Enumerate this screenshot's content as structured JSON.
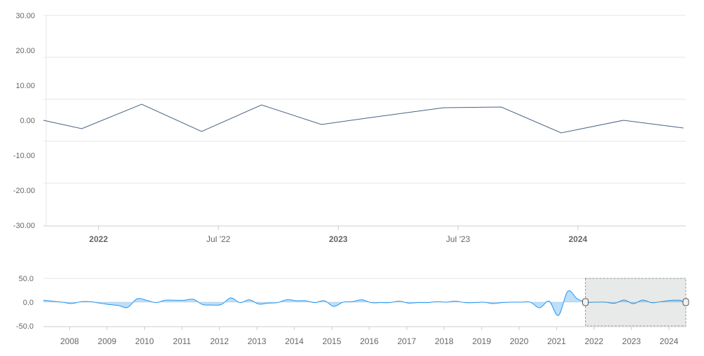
{
  "chart_data": {
    "type": "line",
    "main": {
      "y_ticks": [
        "30.00",
        "20.00",
        "10.00",
        "0.00",
        "-10.00",
        "-20.00",
        "-30.00"
      ],
      "ylim": [
        -30,
        30
      ],
      "x_ticks": [
        {
          "label": "2022",
          "date": 2022.0,
          "bold": true
        },
        {
          "label": "Jul '22",
          "date": 2022.5,
          "bold": false
        },
        {
          "label": "2023",
          "date": 2023.0,
          "bold": true
        },
        {
          "label": "Jul '23",
          "date": 2023.5,
          "bold": false
        },
        {
          "label": "2024",
          "date": 2024.0,
          "bold": true
        }
      ],
      "xlim": [
        2021.77,
        2024.45
      ],
      "series": [
        {
          "color": "#4a6283",
          "x": [
            "Oct 2021",
            "Dec 2021",
            "Mar 2022",
            "Jun 2022",
            "Sep 2022",
            "Dec 2022",
            "Mar 2023",
            "Jun 2023",
            "Sep 2023",
            "Dec 2023",
            "Mar 2024",
            "Jun 2024"
          ],
          "t": [
            2021.77,
            2021.93,
            2022.18,
            2022.43,
            2022.68,
            2022.93,
            2023.18,
            2023.44,
            2023.68,
            2023.93,
            2024.19,
            2024.44
          ],
          "values": [
            0,
            -2.4,
            4.6,
            -3.2,
            4.4,
            -1.2,
            1.2,
            3.6,
            3.8,
            -3.6,
            0,
            -2.2
          ]
        }
      ]
    },
    "navigator": {
      "y_ticks": [
        "50.0",
        "0.0",
        "-50.0"
      ],
      "ylim": [
        -50,
        50
      ],
      "x_ticks": [
        "2008",
        "2009",
        "2010",
        "2011",
        "2012",
        "2013",
        "2014",
        "2015",
        "2016",
        "2017",
        "2018",
        "2019",
        "2020",
        "2021",
        "2022",
        "2023",
        "2024"
      ],
      "xlim": [
        2007.3,
        2024.45
      ],
      "color": "#2196f3",
      "start": 2007.3,
      "step": 0.25,
      "values": [
        4,
        2,
        0,
        -3,
        1,
        1,
        -2,
        -5,
        -7,
        -11,
        7,
        4,
        -1,
        4,
        4,
        4,
        6,
        -5,
        -6,
        -5,
        9,
        -1,
        5,
        -4,
        -2,
        -1,
        5,
        3,
        3,
        -1,
        3,
        -9,
        0,
        1,
        5,
        -1,
        -1,
        -1,
        2,
        -2,
        -1,
        -1,
        1,
        0,
        2,
        -1,
        -1,
        0,
        -3,
        -1,
        0,
        0,
        0,
        -12,
        2,
        -28,
        23,
        7,
        0,
        0,
        0,
        -2.4,
        4.6,
        -3.2,
        4.4,
        -1.2,
        1.2,
        3.6,
        3.8,
        -3.6,
        0,
        -2.2
      ],
      "selection": [
        2021.77,
        2024.45
      ]
    }
  }
}
